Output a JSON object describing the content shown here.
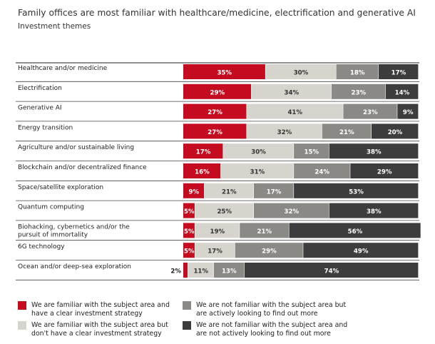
{
  "header": {
    "title": "Family offices are most familiar with healthcare/medicine, electrification and generative AI",
    "subtitle": "Investment themes"
  },
  "colors": {
    "red": "#c40b1f",
    "light": "#d7d4cd",
    "mid": "#8a8986",
    "dark": "#3d3d3d"
  },
  "chart_data": {
    "type": "bar",
    "orientation": "horizontal",
    "stacked": true,
    "unit": "%",
    "title": "Family offices are most familiar with healthcare/medicine, electrification and generative AI",
    "subtitle": "Investment themes",
    "categories": [
      "Healthcare and/or medicine",
      "Electrification",
      "Generative AI",
      "Energy transition",
      "Agriculture and/or sustainable living",
      "Blockchain and/or decentralized finance",
      "Space/satellite exploration",
      "Quantum computing",
      "Biohacking, cybernetics and/or the pursuit of immortality",
      "6G technology",
      "Ocean and/or deep-sea exploration"
    ],
    "series": [
      {
        "name": "We are familiar with the subject area and have a clear investment strategy",
        "color": "#c40b1f",
        "values": [
          35,
          29,
          27,
          27,
          17,
          16,
          9,
          5,
          5,
          5,
          2
        ]
      },
      {
        "name": "We are familiar with the subject area but don't have a clear investment strategy",
        "color": "#d7d4cd",
        "values": [
          30,
          34,
          41,
          32,
          30,
          31,
          21,
          25,
          19,
          17,
          11
        ]
      },
      {
        "name": "We are not familiar with the subject area but are actively looking to find out more",
        "color": "#8a8986",
        "values": [
          18,
          23,
          23,
          21,
          15,
          24,
          17,
          32,
          21,
          29,
          13
        ]
      },
      {
        "name": "We are not familiar with the subject area and are not actively looking to find out more",
        "color": "#3d3d3d",
        "values": [
          17,
          14,
          9,
          20,
          38,
          29,
          53,
          38,
          56,
          49,
          74
        ]
      }
    ],
    "labels": [
      [
        "35%",
        "30%",
        "18%",
        "17%"
      ],
      [
        "29%",
        "34%",
        "23%",
        "14%"
      ],
      [
        "27%",
        "41%",
        "23%",
        "9%"
      ],
      [
        "27%",
        "32%",
        "21%",
        "20%"
      ],
      [
        "17%",
        "30%",
        "15%",
        "38%"
      ],
      [
        "16%",
        "31%",
        "24%",
        "29%"
      ],
      [
        "9%",
        "21%",
        "17%",
        "53%"
      ],
      [
        "5%",
        "25%",
        "32%",
        "38%"
      ],
      [
        "5%",
        "19%",
        "21%",
        "56%"
      ],
      [
        "5%",
        "17%",
        "29%",
        "49%"
      ],
      [
        "2%",
        "11%",
        "13%",
        "74%"
      ]
    ],
    "xlim": [
      0,
      100
    ],
    "legend_position": "bottom"
  },
  "legend": {
    "items": [
      {
        "line1": "We are familiar with the subject area and",
        "line2": "have a clear investment strategy"
      },
      {
        "line1": "We are not familiar with the subject area but",
        "line2": "are actively looking to find out more"
      },
      {
        "line1": "We are familiar with the subject area but",
        "line2": "don't have a clear investment strategy"
      },
      {
        "line1": "We are not familiar with the subject area and",
        "line2": "are not actively looking to find out more"
      }
    ]
  }
}
